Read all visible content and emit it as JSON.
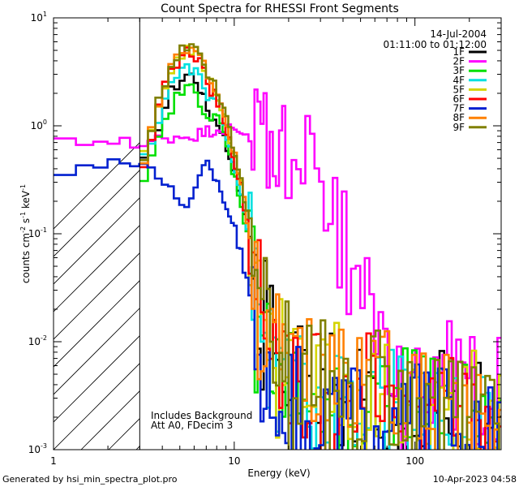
{
  "chart_data": {
    "type": "line",
    "title": "Count Spectra for RHESSI Front Segments",
    "xlabel": "Energy (keV)",
    "ylabel": "counts cm-2 s-1 keV-1",
    "xscale": "log",
    "yscale": "log",
    "xlim": [
      1,
      300
    ],
    "ylim": [
      0.001,
      10
    ],
    "x_ticks": [
      {
        "v": 1,
        "label": "1"
      },
      {
        "v": 10,
        "label": "10"
      },
      {
        "v": 100,
        "label": "100"
      }
    ],
    "y_ticks": [
      {
        "v": 10,
        "base": "10",
        "exp": "1"
      },
      {
        "v": 1,
        "base": "10",
        "exp": "0"
      },
      {
        "v": 0.1,
        "base": "10",
        "exp": "-1"
      },
      {
        "v": 0.01,
        "base": "10",
        "exp": "-2"
      },
      {
        "v": 0.001,
        "base": "10",
        "exp": "-3"
      }
    ],
    "shaded_region": {
      "x_from": 1,
      "x_to": 3,
      "style": "diagonal-hatch"
    },
    "date": "14-Jul-2004",
    "time_range": "01:11:00 to 01:12:00",
    "annotations": [
      "Includes Background",
      "Att A0, FDecim 3"
    ],
    "series": [
      {
        "name": "1F",
        "color": "#000000",
        "points": [
          [
            3,
            0.38
          ],
          [
            3.5,
            0.65
          ],
          [
            4,
            1.3
          ],
          [
            4.5,
            2.1
          ],
          [
            5,
            2.6
          ],
          [
            5.5,
            3.0
          ],
          [
            6,
            2.9
          ],
          [
            6.5,
            2.2
          ],
          [
            7,
            1.5
          ],
          [
            7.5,
            1.2
          ],
          [
            8,
            1.1
          ],
          [
            8.5,
            0.95
          ],
          [
            9,
            0.65
          ],
          [
            10,
            0.4
          ],
          [
            11,
            0.2
          ],
          [
            12,
            0.1
          ],
          [
            13,
            0.045
          ],
          [
            14,
            0.02
          ],
          [
            16,
            0.012
          ],
          [
            18,
            0.008
          ],
          [
            20,
            0.006
          ],
          [
            25,
            0.005
          ],
          [
            30,
            0.004
          ],
          [
            40,
            0.0035
          ],
          [
            60,
            0.0035
          ],
          [
            100,
            0.003
          ],
          [
            150,
            0.0025
          ],
          [
            200,
            0.002
          ],
          [
            250,
            0.0018
          ],
          [
            300,
            0.0015
          ]
        ]
      },
      {
        "name": "2F",
        "color": "#ff00ff",
        "points": [
          [
            1,
            0.68
          ],
          [
            1.3,
            0.68
          ],
          [
            1.6,
            0.7
          ],
          [
            2,
            0.75
          ],
          [
            2.5,
            0.78
          ],
          [
            3,
            0.55
          ],
          [
            3.5,
            0.72
          ],
          [
            4,
            0.78
          ],
          [
            5,
            0.8
          ],
          [
            6,
            0.82
          ],
          [
            7,
            0.88
          ],
          [
            8,
            0.95
          ],
          [
            9,
            0.95
          ],
          [
            10,
            0.9
          ],
          [
            12,
            0.88
          ],
          [
            14,
            0.82
          ],
          [
            16,
            0.8
          ],
          [
            18,
            0.74
          ],
          [
            20,
            0.68
          ],
          [
            22,
            0.55
          ],
          [
            24,
            0.48
          ],
          [
            26,
            0.4
          ],
          [
            28,
            0.3
          ],
          [
            30,
            0.22
          ],
          [
            33,
            0.16
          ],
          [
            36,
            0.12
          ],
          [
            40,
            0.075
          ],
          [
            45,
            0.048
          ],
          [
            50,
            0.03
          ],
          [
            55,
            0.018
          ],
          [
            60,
            0.013
          ],
          [
            70,
            0.01
          ],
          [
            80,
            0.008
          ],
          [
            100,
            0.0065
          ],
          [
            130,
            0.0055
          ],
          [
            160,
            0.0045
          ],
          [
            200,
            0.004
          ],
          [
            250,
            0.0035
          ],
          [
            300,
            0.003
          ]
        ]
      },
      {
        "name": "3F",
        "color": "#00e000",
        "points": [
          [
            3,
            0.2
          ],
          [
            3.5,
            0.5
          ],
          [
            4,
            0.9
          ],
          [
            4.5,
            1.5
          ],
          [
            5,
            2.0
          ],
          [
            5.5,
            2.3
          ],
          [
            6,
            2.1
          ],
          [
            6.5,
            1.7
          ],
          [
            7,
            1.3
          ],
          [
            7.5,
            1.1
          ],
          [
            8,
            1.2
          ],
          [
            8.5,
            1.0
          ],
          [
            9,
            0.7
          ],
          [
            10,
            0.35
          ],
          [
            11,
            0.18
          ],
          [
            12,
            0.09
          ],
          [
            13,
            0.04
          ],
          [
            14,
            0.015
          ],
          [
            16,
            0.006
          ],
          [
            18,
            0.004
          ],
          [
            20,
            0.004
          ],
          [
            25,
            0.0035
          ],
          [
            30,
            0.003
          ],
          [
            40,
            0.003
          ],
          [
            60,
            0.003
          ],
          [
            100,
            0.0028
          ],
          [
            150,
            0.0025
          ],
          [
            200,
            0.002
          ],
          [
            250,
            0.0018
          ],
          [
            300,
            0.0015
          ]
        ]
      },
      {
        "name": "4F",
        "color": "#00e0e0",
        "points": [
          [
            3,
            0.38
          ],
          [
            3.5,
            0.75
          ],
          [
            4,
            1.5
          ],
          [
            4.5,
            2.5
          ],
          [
            5,
            3.2
          ],
          [
            5.5,
            3.5
          ],
          [
            6,
            3.4
          ],
          [
            6.5,
            2.6
          ],
          [
            7,
            1.9
          ],
          [
            7.5,
            1.7
          ],
          [
            8,
            1.8
          ],
          [
            8.5,
            1.4
          ],
          [
            9,
            0.9
          ],
          [
            10,
            0.45
          ],
          [
            11,
            0.22
          ],
          [
            12,
            0.1
          ],
          [
            13,
            0.035
          ],
          [
            14,
            0.012
          ],
          [
            16,
            0.006
          ],
          [
            18,
            0.004
          ],
          [
            20,
            0.0035
          ],
          [
            25,
            0.003
          ],
          [
            30,
            0.003
          ],
          [
            40,
            0.003
          ],
          [
            60,
            0.003
          ],
          [
            100,
            0.0025
          ],
          [
            150,
            0.0022
          ],
          [
            200,
            0.002
          ],
          [
            250,
            0.0018
          ],
          [
            300,
            0.0015
          ]
        ]
      },
      {
        "name": "5F",
        "color": "#d4d400",
        "points": [
          [
            3,
            0.38
          ],
          [
            3.5,
            0.9
          ],
          [
            4,
            2.0
          ],
          [
            4.5,
            3.4
          ],
          [
            5,
            4.5
          ],
          [
            5.5,
            5.1
          ],
          [
            6,
            5.0
          ],
          [
            6.5,
            4.1
          ],
          [
            7,
            3.2
          ],
          [
            7.5,
            2.4
          ],
          [
            8,
            1.9
          ],
          [
            8.5,
            1.5
          ],
          [
            9,
            1.0
          ],
          [
            10,
            0.55
          ],
          [
            11,
            0.28
          ],
          [
            12,
            0.12
          ],
          [
            13,
            0.05
          ],
          [
            14,
            0.02
          ],
          [
            16,
            0.012
          ],
          [
            18,
            0.008
          ],
          [
            20,
            0.007
          ],
          [
            25,
            0.006
          ],
          [
            30,
            0.005
          ],
          [
            40,
            0.0045
          ],
          [
            60,
            0.004
          ],
          [
            100,
            0.0035
          ],
          [
            150,
            0.003
          ],
          [
            200,
            0.0025
          ],
          [
            250,
            0.002
          ],
          [
            300,
            0.0018
          ]
        ]
      },
      {
        "name": "6F",
        "color": "#ff0000",
        "points": [
          [
            3,
            0.35
          ],
          [
            3.5,
            0.85
          ],
          [
            4,
            1.9
          ],
          [
            4.5,
            3.2
          ],
          [
            5,
            4.3
          ],
          [
            5.5,
            4.8
          ],
          [
            6,
            4.6
          ],
          [
            6.5,
            3.8
          ],
          [
            7,
            2.9
          ],
          [
            7.5,
            2.1
          ],
          [
            8,
            1.8
          ],
          [
            8.5,
            1.4
          ],
          [
            9,
            0.95
          ],
          [
            10,
            0.5
          ],
          [
            11,
            0.25
          ],
          [
            12,
            0.11
          ],
          [
            13,
            0.045
          ],
          [
            14,
            0.02
          ],
          [
            16,
            0.01
          ],
          [
            18,
            0.007
          ],
          [
            20,
            0.006
          ],
          [
            25,
            0.005
          ],
          [
            30,
            0.0045
          ],
          [
            40,
            0.004
          ],
          [
            60,
            0.0035
          ],
          [
            100,
            0.003
          ],
          [
            150,
            0.0028
          ],
          [
            200,
            0.0025
          ],
          [
            250,
            0.002
          ],
          [
            300,
            0.0018
          ]
        ]
      },
      {
        "name": "7F",
        "color": "#0020d0",
        "points": [
          [
            1,
            0.37
          ],
          [
            1.3,
            0.42
          ],
          [
            1.6,
            0.44
          ],
          [
            2,
            0.46
          ],
          [
            2.5,
            0.47
          ],
          [
            3,
            0.4
          ],
          [
            3.5,
            0.36
          ],
          [
            4,
            0.32
          ],
          [
            4.5,
            0.25
          ],
          [
            5,
            0.21
          ],
          [
            5.5,
            0.19
          ],
          [
            6,
            0.22
          ],
          [
            6.5,
            0.35
          ],
          [
            7,
            0.45
          ],
          [
            7.5,
            0.38
          ],
          [
            8,
            0.32
          ],
          [
            8.5,
            0.25
          ],
          [
            9,
            0.18
          ],
          [
            10,
            0.12
          ],
          [
            11,
            0.06
          ],
          [
            12,
            0.03
          ],
          [
            13,
            0.012
          ],
          [
            14,
            0.006
          ],
          [
            16,
            0.004
          ],
          [
            18,
            0.003
          ],
          [
            20,
            0.003
          ],
          [
            25,
            0.0025
          ],
          [
            30,
            0.0025
          ],
          [
            40,
            0.0025
          ],
          [
            60,
            0.0022
          ],
          [
            100,
            0.002
          ],
          [
            150,
            0.0018
          ],
          [
            200,
            0.0016
          ],
          [
            250,
            0.0014
          ],
          [
            300,
            0.0012
          ]
        ]
      },
      {
        "name": "8F",
        "color": "#ff8000",
        "points": [
          [
            3,
            0.38
          ],
          [
            3.5,
            0.88
          ],
          [
            4,
            2.0
          ],
          [
            4.5,
            3.4
          ],
          [
            5,
            4.6
          ],
          [
            5.5,
            5.4
          ],
          [
            6,
            5.2
          ],
          [
            6.5,
            4.2
          ],
          [
            7,
            3.3
          ],
          [
            7.5,
            2.5
          ],
          [
            8,
            2.0
          ],
          [
            8.5,
            1.6
          ],
          [
            9,
            1.1
          ],
          [
            10,
            0.55
          ],
          [
            11,
            0.28
          ],
          [
            12,
            0.12
          ],
          [
            13,
            0.05
          ],
          [
            14,
            0.02
          ],
          [
            16,
            0.011
          ],
          [
            18,
            0.008
          ],
          [
            20,
            0.0065
          ],
          [
            25,
            0.0055
          ],
          [
            30,
            0.005
          ],
          [
            40,
            0.0045
          ],
          [
            60,
            0.004
          ],
          [
            100,
            0.0035
          ],
          [
            150,
            0.003
          ],
          [
            200,
            0.0025
          ],
          [
            250,
            0.002
          ],
          [
            300,
            0.0018
          ]
        ]
      },
      {
        "name": "9F",
        "color": "#808000",
        "points": [
          [
            3,
            0.4
          ],
          [
            3.5,
            0.95
          ],
          [
            4,
            2.2
          ],
          [
            4.5,
            3.6
          ],
          [
            5,
            4.8
          ],
          [
            5.5,
            5.6
          ],
          [
            6,
            5.4
          ],
          [
            6.5,
            4.4
          ],
          [
            7,
            3.4
          ],
          [
            7.5,
            2.6
          ],
          [
            8,
            2.1
          ],
          [
            8.5,
            1.7
          ],
          [
            9,
            1.15
          ],
          [
            10,
            0.6
          ],
          [
            11,
            0.3
          ],
          [
            12,
            0.13
          ],
          [
            13,
            0.055
          ],
          [
            14,
            0.022
          ],
          [
            16,
            0.012
          ],
          [
            18,
            0.008
          ],
          [
            20,
            0.007
          ],
          [
            25,
            0.006
          ],
          [
            30,
            0.005
          ],
          [
            40,
            0.0045
          ],
          [
            60,
            0.004
          ],
          [
            100,
            0.0035
          ],
          [
            150,
            0.003
          ],
          [
            200,
            0.0025
          ],
          [
            250,
            0.002
          ],
          [
            300,
            0.0018
          ]
        ]
      }
    ]
  },
  "footer": {
    "left": "Generated by hsi_min_spectra_plot.pro",
    "right": "10-Apr-2023 04:58"
  }
}
